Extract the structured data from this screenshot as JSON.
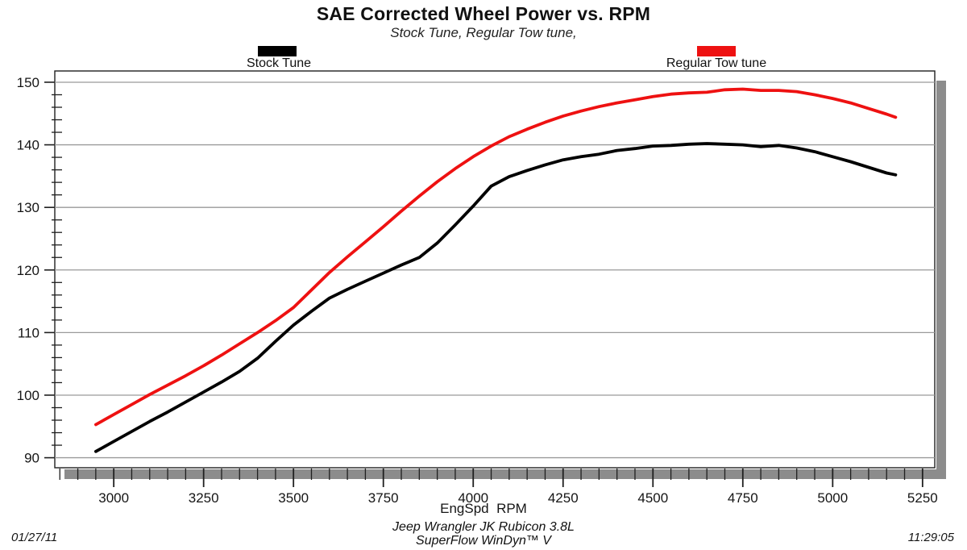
{
  "header": {
    "title": "SAE Corrected Wheel Power vs. RPM",
    "subtitle": "Stock Tune, Regular Tow tune,"
  },
  "legend": {
    "position": "top",
    "items": [
      {
        "label": "Stock Tune",
        "color": "#000000"
      },
      {
        "label": "Regular Tow tune",
        "color": "#ee1111"
      }
    ]
  },
  "chart_data": {
    "type": "line",
    "title": "SAE Corrected Wheel Power vs. RPM",
    "subtitle": "Stock Tune, Regular Tow tune,",
    "xlabel": "EngSpd  RPM",
    "ylabel": "",
    "xlim": [
      2836,
      5284
    ],
    "ylim": [
      88.4,
      151.8
    ],
    "grid": "horizontal-major-only",
    "legend_position": "top-above-plot",
    "x_major_ticks": [
      3000,
      3250,
      3500,
      3750,
      4000,
      4250,
      4500,
      4750,
      5000,
      5250
    ],
    "x_minor": {
      "start": 2850,
      "end": 5250,
      "step": 50
    },
    "y_major_ticks": [
      90,
      100,
      110,
      120,
      130,
      140,
      150
    ],
    "y_minor": {
      "start": 90,
      "end": 150,
      "step": 2
    },
    "colors": {
      "grid": "#9a9a9a",
      "axis": "#1f1f1f",
      "shadow": "#8c8c8c",
      "plot_bg": "#ffffff"
    },
    "x": [
      2950,
      3000,
      3050,
      3100,
      3150,
      3200,
      3250,
      3300,
      3350,
      3400,
      3450,
      3500,
      3550,
      3600,
      3650,
      3700,
      3750,
      3800,
      3850,
      3900,
      3950,
      4000,
      4050,
      4100,
      4150,
      4200,
      4250,
      4300,
      4350,
      4400,
      4450,
      4500,
      4550,
      4600,
      4650,
      4700,
      4750,
      4800,
      4850,
      4900,
      4950,
      5000,
      5050,
      5100,
      5150,
      5175
    ],
    "series": [
      {
        "name": "Stock Tune",
        "color": "#000000",
        "values": [
          91.0,
          92.6,
          94.2,
          95.8,
          97.3,
          98.9,
          100.5,
          102.1,
          103.8,
          105.9,
          108.6,
          111.2,
          113.4,
          115.5,
          116.9,
          118.2,
          119.5,
          120.8,
          122.0,
          124.3,
          127.2,
          130.2,
          133.4,
          134.9,
          135.9,
          136.8,
          137.6,
          138.1,
          138.5,
          139.1,
          139.4,
          139.8,
          139.9,
          140.1,
          140.2,
          140.1,
          140.0,
          139.7,
          139.9,
          139.5,
          138.9,
          138.1,
          137.3,
          136.4,
          135.5,
          135.2
        ]
      },
      {
        "name": "Regular Tow tune",
        "color": "#ee1111",
        "values": [
          95.3,
          96.9,
          98.5,
          100.1,
          101.6,
          103.1,
          104.7,
          106.4,
          108.2,
          110.0,
          111.9,
          114.0,
          116.8,
          119.6,
          122.1,
          124.5,
          126.9,
          129.4,
          131.8,
          134.1,
          136.2,
          138.1,
          139.8,
          141.3,
          142.5,
          143.6,
          144.6,
          145.4,
          146.1,
          146.7,
          147.2,
          147.7,
          148.1,
          148.3,
          148.4,
          148.8,
          148.9,
          148.7,
          148.7,
          148.5,
          148.0,
          147.4,
          146.7,
          145.8,
          144.9,
          144.4
        ]
      }
    ]
  },
  "footer": {
    "date": "01/27/11",
    "vehicle_line1": "Jeep Wrangler JK Rubicon 3.8L",
    "vehicle_line2": "SuperFlow WinDyn™ V",
    "time": "11:29:05"
  }
}
